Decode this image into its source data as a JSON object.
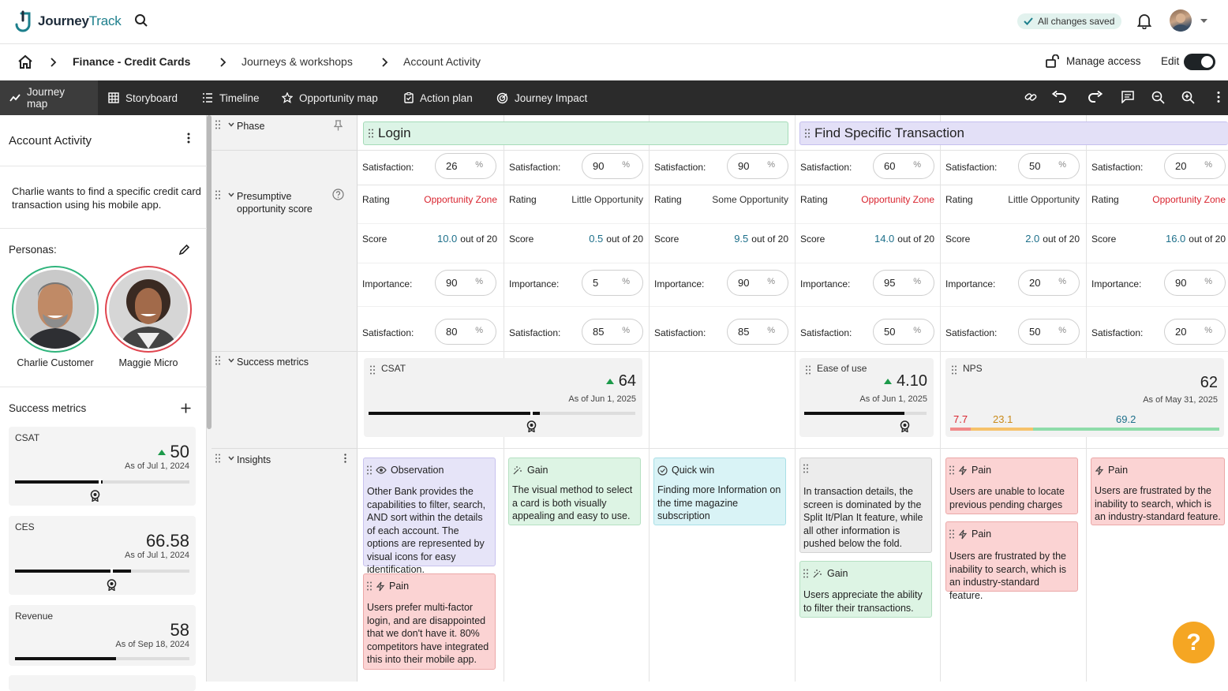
{
  "app": {
    "name_part1": "Journey",
    "name_part2": "Track",
    "saved_status": "All changes saved"
  },
  "breadcrumb": {
    "item1": "Finance - Credit Cards",
    "item2": "Journeys & workshops",
    "item3": "Account Activity"
  },
  "header_actions": {
    "manage_access": "Manage access",
    "edit_label": "Edit"
  },
  "tabs": [
    {
      "label": "Journey map"
    },
    {
      "label": "Storyboard"
    },
    {
      "label": "Timeline"
    },
    {
      "label": "Opportunity map"
    },
    {
      "label": "Action plan"
    },
    {
      "label": "Journey Impact"
    }
  ],
  "left_panel": {
    "title": "Account Activity",
    "description": "Charlie wants to find a specific credit card transaction using his mobile app.",
    "personas_label": "Personas:",
    "personas": [
      {
        "name": "Charlie Customer",
        "ring_color": "#2fb47c"
      },
      {
        "name": "Maggie Micro",
        "ring_color": "#e0454f"
      }
    ],
    "success_metrics_label": "Success metrics",
    "metrics": [
      {
        "name": "CSAT",
        "value": "50",
        "date": "As of Jul 1, 2024",
        "trend": "up",
        "progress": 0.5
      },
      {
        "name": "CES",
        "value": "66.58",
        "date": "As of Jul 1, 2024",
        "trend": "",
        "progress": 0.55
      },
      {
        "name": "Revenue",
        "value": "58",
        "date": "As of Sep 18, 2024",
        "trend": "",
        "progress": 0.58
      }
    ]
  },
  "rows": {
    "phase": "Phase",
    "opportunity_line1": "Presumptive",
    "opportunity_line2": "opportunity score",
    "success_metrics": "Success metrics",
    "insights": "Insights"
  },
  "phases": [
    {
      "name": "Login",
      "color": "#dcf4e6"
    },
    {
      "name": "Find Specific Transaction",
      "color": "#e3e0f7"
    }
  ],
  "labels": {
    "satisfaction": "Satisfaction:",
    "importance": "Importance:",
    "rating": "Rating",
    "score": "Score",
    "out_of": "out of 20",
    "percent": "%"
  },
  "columns": [
    {
      "sat_top": "26",
      "rating": "Opportunity Zone",
      "rating_color": "#d9242f",
      "score": "10.0",
      "importance": "90",
      "sat_bottom": "80"
    },
    {
      "sat_top": "90",
      "rating": "Little Opportunity",
      "rating_color": "#333333",
      "score": "0.5",
      "importance": "5",
      "sat_bottom": "85"
    },
    {
      "sat_top": "90",
      "rating": "Some Opportunity",
      "rating_color": "#333333",
      "score": "9.5",
      "importance": "90",
      "sat_bottom": "85"
    },
    {
      "sat_top": "60",
      "rating": "Opportunity Zone",
      "rating_color": "#d9242f",
      "score": "14.0",
      "importance": "95",
      "sat_bottom": "50"
    },
    {
      "sat_top": "50",
      "rating": "Little Opportunity",
      "rating_color": "#333333",
      "score": "2.0",
      "importance": "20",
      "sat_bottom": "50"
    },
    {
      "sat_top": "20",
      "rating": "Opportunity Zone",
      "rating_color": "#d9242f",
      "score": "16.0",
      "importance": "90",
      "sat_bottom": "20"
    }
  ],
  "grid_metrics": [
    {
      "name": "CSAT",
      "value": "64",
      "date": "As of Jun 1, 2025",
      "progress": 0.64
    },
    {
      "name": "Ease of use",
      "value": "4.10",
      "date": "As of Jun 1, 2025",
      "progress": 0.82
    },
    {
      "name": "NPS",
      "value": "62",
      "date": "As of May 31, 2025",
      "seg1": "7.7",
      "seg2": "23.1",
      "seg3": "69.2"
    }
  ],
  "insights": {
    "c1_obs": {
      "type": "Observation",
      "text": "Other Bank provides the capabilities to filter, search, AND sort within the details of each account. The options are represented by visual icons for easy identification."
    },
    "c1_pain": {
      "type": "Pain",
      "text": "Users prefer multi-factor login, and are disappointed that we don't have it. 80% competitors have integrated this into their mobile app."
    },
    "c2_gain": {
      "type": "Gain",
      "text": "The visual method to select a card is both visually appealing and easy to use."
    },
    "c3_win": {
      "type": "Quick win",
      "text": "Finding more Information on the time magazine subscription"
    },
    "c4_note": {
      "text": "In transaction details, the screen is dominated by the Split It/Plan It feature, while all other information is pushed below the fold."
    },
    "c4_gain": {
      "type": "Gain",
      "text": "Users appreciate the ability to filter their transactions."
    },
    "c5_pain1": {
      "type": "Pain",
      "text": "Users are unable to locate previous pending charges"
    },
    "c5_pain2": {
      "type": "Pain",
      "text": "Users are frustrated by the inability to search, which is an industry-standard feature."
    },
    "c6_pain": {
      "type": "Pain",
      "text": "Users are frustrated by the inability to search, which is an industry-standard feature."
    }
  },
  "help": {
    "label": "?"
  }
}
